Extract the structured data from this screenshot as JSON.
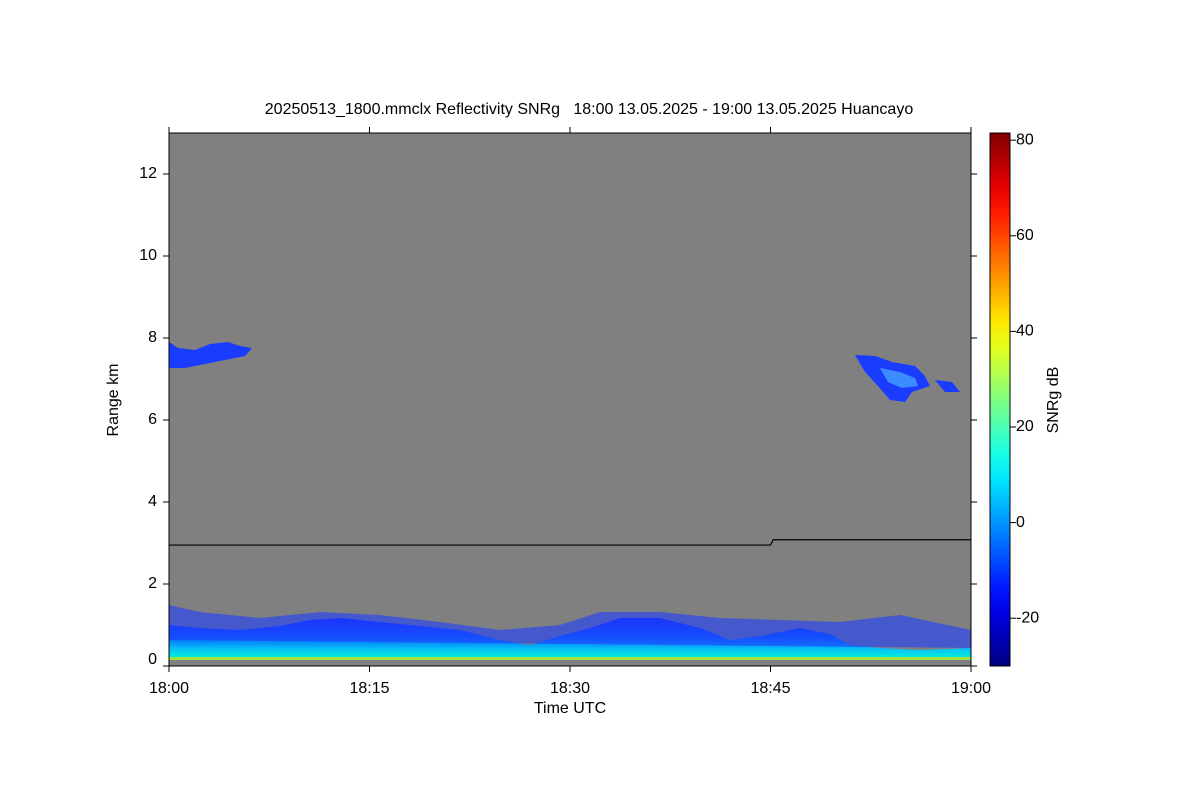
{
  "chart_data": {
    "type": "heatmap",
    "title": "20250513_1800.mmclx Reflectivity SNRg   18:00 13.05.2025 - 19:00 13.05.2025 Huancayo",
    "xlabel": "Time UTC",
    "ylabel": "Range km",
    "xlim": [
      0,
      60
    ],
    "xticks": [
      {
        "value": 0,
        "label": "18:00"
      },
      {
        "value": 15,
        "label": "18:15"
      },
      {
        "value": 30,
        "label": "18:30"
      },
      {
        "value": 45,
        "label": "18:45"
      },
      {
        "value": 60,
        "label": "19:00"
      }
    ],
    "ylim": [
      0,
      13
    ],
    "yticks": [
      0,
      2,
      4,
      6,
      8,
      10,
      12
    ],
    "background": "#808080",
    "line": {
      "color": "#000000",
      "x": [
        0,
        45,
        45.2,
        60
      ],
      "values": [
        2.95,
        2.95,
        3.08,
        3.08
      ]
    },
    "colorbar": {
      "label": "SNRg dB",
      "colormap": "jet",
      "lim": [
        -30,
        81.5
      ],
      "ticks": [
        -20,
        0,
        20,
        40,
        60,
        80
      ]
    }
  }
}
